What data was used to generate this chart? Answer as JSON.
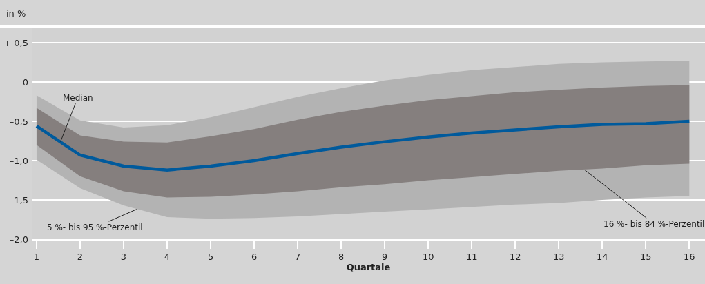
{
  "chart_data": {
    "type": "line",
    "ylabel": "in %",
    "xlabel": "Quartale",
    "x": [
      1,
      2,
      3,
      4,
      5,
      6,
      7,
      8,
      9,
      10,
      11,
      12,
      13,
      14,
      15,
      16
    ],
    "series": [
      {
        "type": "area",
        "color": "#b3b3b3",
        "values": [
          null,
          null,
          null,
          null,
          null,
          null,
          null,
          null,
          null,
          null,
          null,
          null,
          null,
          null,
          null,
          null
        ],
        "lower": [
          -0.99,
          -1.35,
          -1.57,
          -1.72,
          -1.74,
          -1.73,
          -1.71,
          -1.68,
          -1.65,
          -1.62,
          -1.59,
          -1.56,
          -1.54,
          -1.5,
          -1.47,
          -1.45
        ],
        "upper": [
          -0.17,
          -0.49,
          -0.58,
          -0.55,
          -0.45,
          -0.32,
          -0.19,
          -0.08,
          0.02,
          0.09,
          0.15,
          0.19,
          0.23,
          0.25,
          0.26,
          0.27
        ]
      },
      {
        "type": "area",
        "color": "#857f7e",
        "values": [
          null,
          null,
          null,
          null,
          null,
          null,
          null,
          null,
          null,
          null,
          null,
          null,
          null,
          null,
          null,
          null
        ],
        "lower": [
          -0.8,
          -1.2,
          -1.39,
          -1.47,
          -1.46,
          -1.43,
          -1.39,
          -1.34,
          -1.3,
          -1.25,
          -1.21,
          -1.17,
          -1.13,
          -1.1,
          -1.06,
          -1.04
        ],
        "upper": [
          -0.33,
          -0.68,
          -0.76,
          -0.77,
          -0.69,
          -0.6,
          -0.48,
          -0.38,
          -0.3,
          -0.23,
          -0.18,
          -0.13,
          -0.1,
          -0.07,
          -0.05,
          -0.04
        ]
      },
      {
        "color": "#005a9c",
        "values": [
          -0.56,
          -0.93,
          -1.07,
          -1.12,
          -1.07,
          -1.0,
          -0.91,
          -0.83,
          -0.76,
          -0.7,
          -0.65,
          -0.61,
          -0.57,
          -0.54,
          -0.53,
          -0.5
        ]
      }
    ],
    "annotations": [
      {
        "text": "5 %- bis 95 %-Perzentil",
        "x": 3.3,
        "y": -1.62
      },
      {
        "text": "16 %- bis 84 %-Perzentil",
        "x": 13.6,
        "y": -1.12
      },
      {
        "text": "Median",
        "x": 1.55,
        "y": -0.76
      }
    ],
    "xlim": [
      0.89,
      16.36
    ],
    "ylim": [
      -2.0,
      0.71
    ],
    "xticks": [
      1,
      2,
      3,
      4,
      5,
      6,
      7,
      8,
      9,
      10,
      11,
      12,
      13,
      14,
      15,
      16
    ],
    "yticks": [
      {
        "value": 0.5,
        "label": "+ 0,5"
      },
      0,
      {
        "value": -0.5,
        "label": "–0,5"
      },
      {
        "value": -1.0,
        "label": "–1,0"
      },
      {
        "value": -1.5,
        "label": "–1,5"
      },
      {
        "value": -2.0,
        "label": "–2,0"
      }
    ],
    "grid": "y",
    "marker": "none",
    "line_style": "solid"
  }
}
